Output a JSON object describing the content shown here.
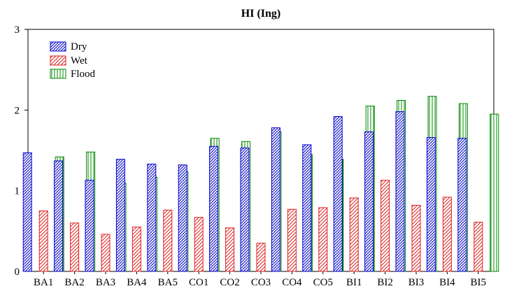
{
  "chart_data": {
    "type": "bar",
    "title": "HI (Ing)",
    "xlabel": "",
    "ylabel": "",
    "ylim": [
      0,
      3
    ],
    "yticks": [
      "0",
      "1",
      "2",
      "3"
    ],
    "categories": [
      "BA1",
      "BA2",
      "BA3",
      "BA4",
      "BA5",
      "CO1",
      "CO2",
      "CO3",
      "CO4",
      "CO5",
      "BI1",
      "BI2",
      "BI3",
      "BI4",
      "BI5"
    ],
    "series": [
      {
        "name": "Dry",
        "color": "#0000cc",
        "pattern": "dense-diagonal-crosshatch",
        "values": [
          1.47,
          1.37,
          1.13,
          1.39,
          1.33,
          1.32,
          1.55,
          1.53,
          1.78,
          1.57,
          1.92,
          1.73,
          1.98,
          1.66,
          1.65
        ]
      },
      {
        "name": "Wet",
        "color": "#dd2222",
        "pattern": "diagonal-hatch",
        "values": [
          0.75,
          0.6,
          0.46,
          0.55,
          0.76,
          0.67,
          0.54,
          0.35,
          0.77,
          0.79,
          0.91,
          1.13,
          0.82,
          0.92,
          0.61
        ]
      },
      {
        "name": "Flood",
        "color": "#008800",
        "pattern": "vertical-lines",
        "values": [
          1.42,
          1.48,
          1.1,
          1.17,
          1.24,
          1.65,
          1.61,
          1.73,
          1.45,
          1.39,
          2.05,
          2.12,
          2.17,
          2.08,
          1.95
        ]
      }
    ],
    "grid": false,
    "legend_position": "top-left"
  }
}
